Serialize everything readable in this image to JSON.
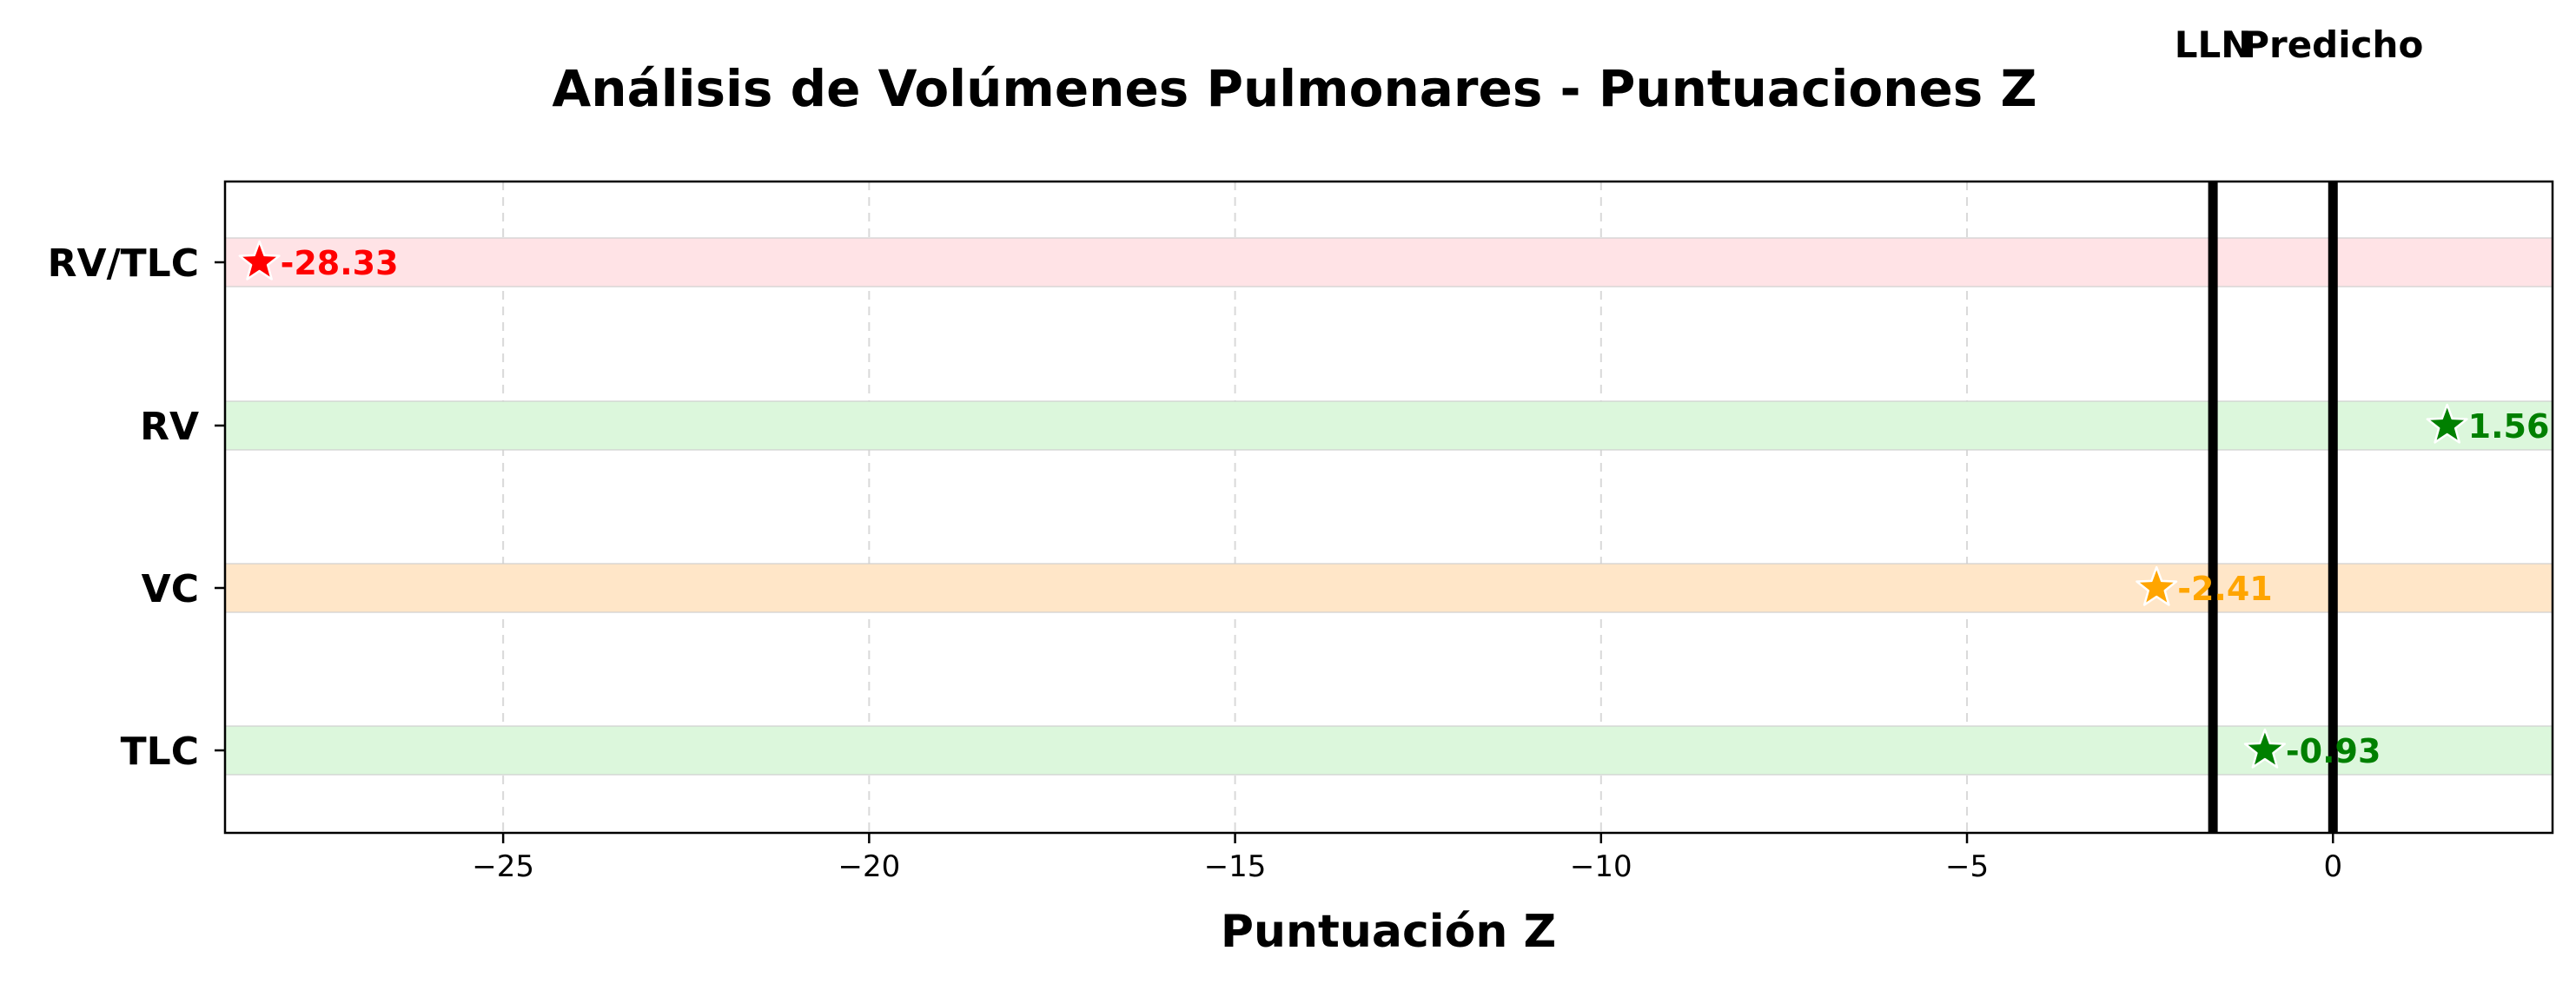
{
  "chart_data": {
    "type": "scatter",
    "title": "Análisis de Volúmenes Pulmonares - Puntuaciones Z",
    "xlabel": "Puntuación Z",
    "ylabel": "",
    "xlim": [
      -28.8,
      3.0
    ],
    "xticks": [
      -25,
      -20,
      -15,
      -10,
      -5,
      0
    ],
    "xtick_labels": [
      "−25",
      "−20",
      "−15",
      "−10",
      "−5",
      "0"
    ],
    "grid": "x dashed",
    "categories": [
      "RV/TLC",
      "RV",
      "VC",
      "TLC"
    ],
    "points": [
      {
        "category": "RV/TLC",
        "x": -28.33,
        "label": "-28.33",
        "color": "#ff0000",
        "band_color": "#ffe3e6"
      },
      {
        "category": "RV",
        "x": 1.56,
        "label": "1.56",
        "color": "#008000",
        "band_color": "#dcf7dc"
      },
      {
        "category": "VC",
        "x": -2.41,
        "label": "-2.41",
        "color": "#ffa500",
        "band_color": "#ffe6c8"
      },
      {
        "category": "TLC",
        "x": -0.93,
        "label": "-0.93",
        "color": "#008000",
        "band_color": "#dcf7dc"
      }
    ],
    "reference_lines": [
      {
        "name": "LLN",
        "x": -1.64,
        "label": "LLN"
      },
      {
        "name": "Predicho",
        "x": 0,
        "label": "Predicho"
      }
    ]
  }
}
